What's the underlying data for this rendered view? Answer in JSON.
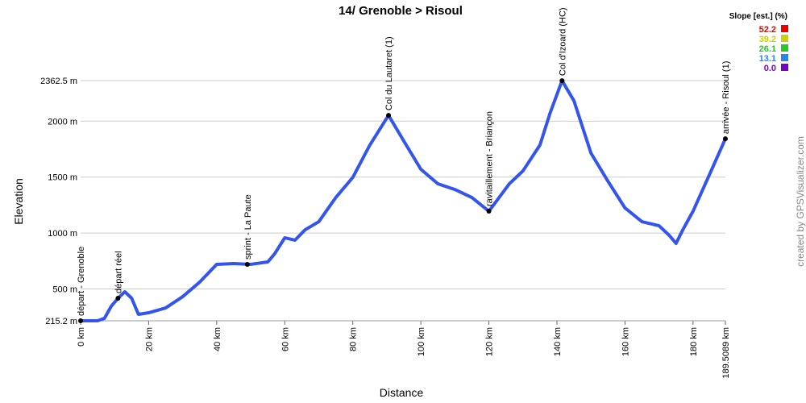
{
  "chart_data": {
    "type": "line",
    "title": "14/ Grenoble > Risoul",
    "x_label": "Distance",
    "y_label": "Elevation",
    "credit": "created by GPSVisualizer.com",
    "legend_title": "Slope [est.] (%)",
    "legend": [
      {
        "label": "52.2",
        "color": "#ee0000"
      },
      {
        "label": "39.2",
        "color": "#c8d400"
      },
      {
        "label": "26.1",
        "color": "#22cc22"
      },
      {
        "label": "13.1",
        "color": "#2288ee"
      },
      {
        "label": "0.0",
        "color": "#7700cc"
      }
    ],
    "xlim": [
      0,
      189.5089
    ],
    "ylim": [
      215.2,
      2362.5
    ],
    "xticks": [
      {
        "value": 0,
        "label": "0 km"
      },
      {
        "value": 20,
        "label": "20 km"
      },
      {
        "value": 40,
        "label": "40 km"
      },
      {
        "value": 60,
        "label": "60 km"
      },
      {
        "value": 80,
        "label": "80 km"
      },
      {
        "value": 100,
        "label": "100 km"
      },
      {
        "value": 120,
        "label": "120 km"
      },
      {
        "value": 140,
        "label": "140 km"
      },
      {
        "value": 160,
        "label": "160 km"
      },
      {
        "value": 180,
        "label": "180 km"
      },
      {
        "value": 189.5089,
        "label": "189.5089 km"
      }
    ],
    "yticks": [
      {
        "value": 215.2,
        "label": "215.2 m"
      },
      {
        "value": 500,
        "label": "500 m"
      },
      {
        "value": 1000,
        "label": "1000 m"
      },
      {
        "value": 1500,
        "label": "1500 m"
      },
      {
        "value": 2000,
        "label": "2000 m"
      },
      {
        "value": 2362.5,
        "label": "2362.5 m"
      }
    ],
    "grid": true,
    "x": [
      0,
      5,
      7,
      9,
      11,
      13,
      15,
      17,
      20,
      25,
      30,
      35,
      40,
      45,
      50,
      55,
      57,
      60,
      63,
      66,
      70,
      75,
      80,
      85,
      90.5,
      95,
      100,
      105,
      110,
      115,
      120,
      123,
      126,
      130,
      135,
      138,
      141.5,
      145,
      150,
      155,
      160,
      165,
      170,
      173,
      175,
      177,
      180,
      185,
      189.5089
    ],
    "series": [
      {
        "color": "#3355ee",
        "values": [
          215,
          215,
          237,
          345,
          417,
          475,
          417,
          273,
          287,
          330,
          431,
          561,
          720,
          727,
          720,
          741,
          813,
          957,
          936,
          1029,
          1101,
          1317,
          1497,
          1786,
          2052,
          1822,
          1570,
          1440,
          1389,
          1317,
          1195,
          1317,
          1440,
          1555,
          1786,
          2074,
          2362,
          2182,
          1714,
          1462,
          1224,
          1101,
          1065,
          979,
          907,
          1029,
          1195,
          1534,
          1843
        ]
      }
    ],
    "annotations": [
      {
        "text": "départ - Grenoble",
        "x": 0,
        "y": 215
      },
      {
        "text": "départ réel",
        "x": 11,
        "y": 417
      },
      {
        "text": "sprint - La Paute",
        "x": 49,
        "y": 720
      },
      {
        "text": "Col du Lautaret (1)",
        "x": 90.5,
        "y": 2052
      },
      {
        "text": "ravitaillement - Briançon",
        "x": 120,
        "y": 1195
      },
      {
        "text": "Col d'Izoard (HC)",
        "x": 141.5,
        "y": 2362
      },
      {
        "text": "arrivée - Risoul (1)",
        "x": 189.5089,
        "y": 1843
      }
    ]
  }
}
